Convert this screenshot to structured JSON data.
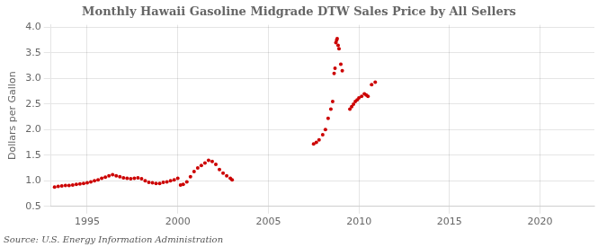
{
  "chart_data": {
    "type": "scatter",
    "title": "Monthly Hawaii Gasoline Midgrade DTW Sales Price by All Sellers",
    "y_label": "Dollars per Gallon",
    "annotation": "Source: U.S. Energy Information Administration",
    "color": "#cc0000",
    "xlim": [
      1993.0,
      2023.0
    ],
    "ylim": [
      0.5,
      4.05
    ],
    "xticks": [
      1995,
      2000,
      2005,
      2010,
      2015,
      2020
    ],
    "yticks": [
      0.5,
      {
        "value": 1.0,
        "label": "1.0"
      },
      1.5,
      {
        "value": 2.0,
        "label": "2.0"
      },
      2.5,
      {
        "value": 3.0,
        "label": "3.0"
      },
      3.5,
      {
        "value": 4.0,
        "label": "4.0"
      }
    ],
    "grid": true,
    "x": [
      1993.2,
      1993.4,
      1993.6,
      1993.8,
      1994.0,
      1994.2,
      1994.4,
      1994.6,
      1994.8,
      1995.0,
      1995.2,
      1995.4,
      1995.6,
      1995.8,
      1996.0,
      1996.2,
      1996.4,
      1996.6,
      1996.8,
      1997.0,
      1997.2,
      1997.4,
      1997.6,
      1997.8,
      1998.0,
      1998.2,
      1998.4,
      1998.6,
      1998.8,
      1999.0,
      1999.2,
      1999.4,
      1999.6,
      1999.8,
      2000.0,
      2000.15,
      2000.3,
      2000.5,
      2000.7,
      2000.9,
      2001.1,
      2001.3,
      2001.5,
      2001.7,
      2001.9,
      2002.1,
      2002.3,
      2002.5,
      2002.7,
      2002.9,
      2003.0,
      2007.5,
      2007.65,
      2007.8,
      2008.0,
      2008.15,
      2008.3,
      2008.45,
      2008.55,
      2008.63,
      2008.68,
      2008.73,
      2008.77,
      2008.8,
      2008.85,
      2008.9,
      2009.0,
      2009.08,
      2009.5,
      2009.6,
      2009.7,
      2009.8,
      2009.9,
      2010.0,
      2010.15,
      2010.3,
      2010.4,
      2010.5,
      2010.7,
      2010.9
    ],
    "values": [
      0.88,
      0.89,
      0.9,
      0.91,
      0.91,
      0.92,
      0.93,
      0.94,
      0.95,
      0.96,
      0.98,
      1.0,
      1.02,
      1.05,
      1.07,
      1.1,
      1.12,
      1.1,
      1.08,
      1.06,
      1.05,
      1.04,
      1.05,
      1.06,
      1.04,
      1.0,
      0.97,
      0.96,
      0.95,
      0.95,
      0.97,
      0.98,
      1.0,
      1.02,
      1.05,
      0.92,
      0.93,
      0.98,
      1.08,
      1.18,
      1.25,
      1.3,
      1.35,
      1.4,
      1.38,
      1.32,
      1.22,
      1.15,
      1.1,
      1.05,
      1.02,
      1.72,
      1.75,
      1.8,
      1.9,
      2.0,
      2.22,
      2.4,
      2.55,
      3.1,
      3.2,
      3.7,
      3.75,
      3.78,
      3.65,
      3.58,
      3.28,
      3.15,
      2.4,
      2.45,
      2.5,
      2.55,
      2.58,
      2.62,
      2.65,
      2.7,
      2.68,
      2.65,
      2.88,
      2.93
    ]
  }
}
